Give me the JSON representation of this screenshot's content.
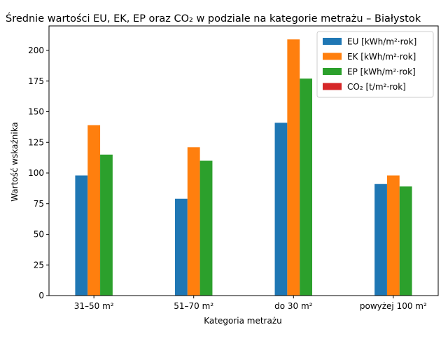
{
  "chart_data": {
    "type": "bar",
    "title": "Średnie wartości EU, EK, EP oraz CO₂ w podziale na kategorie metrażu – Białystok",
    "xlabel": "Kategoria metrażu",
    "ylabel": "Wartość wskaźnika",
    "categories": [
      "31–50 m²",
      "51–70 m²",
      "do 30 m²",
      "powyżej 100 m²"
    ],
    "ylim": [
      0,
      220
    ],
    "yticks": [
      0,
      25,
      50,
      75,
      100,
      125,
      150,
      175,
      200
    ],
    "grid": false,
    "legend_position": "top-right",
    "series": [
      {
        "name": "EU [kWh/m²·rok]",
        "color": "#1f77b4",
        "values": [
          98,
          79,
          141,
          91
        ]
      },
      {
        "name": "EK [kWh/m²·rok]",
        "color": "#ff7f0e",
        "values": [
          139,
          121,
          209,
          98
        ]
      },
      {
        "name": "EP [kWh/m²·rok]",
        "color": "#2ca02c",
        "values": [
          115,
          110,
          177,
          89
        ]
      },
      {
        "name": "CO₂ [t/m²·rok]",
        "color": "#d62728",
        "values": [
          0.05,
          0.04,
          0.07,
          0.04
        ]
      }
    ]
  }
}
